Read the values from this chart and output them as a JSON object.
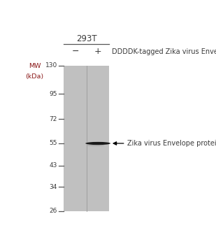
{
  "title_cell_line": "293T",
  "header_label": "DDDDK-tagged Zika virus Envelope",
  "lane_labels": [
    "−",
    "+"
  ],
  "mw_label_line1": "MW",
  "mw_label_line2": "(kDa)",
  "mw_ticks": [
    130,
    95,
    72,
    55,
    43,
    34,
    26
  ],
  "gel_color": "#c0c0c0",
  "band_annotation": "Zika virus Envelope protein",
  "band_mw": 55,
  "background_color": "#ffffff",
  "text_color_main": "#3a3a3a",
  "text_color_mw": "#8b1a1a",
  "band_color": "#1a1a1a",
  "band_smear_color": "#888888",
  "tick_color": "#555555",
  "divider_color": "#999999"
}
